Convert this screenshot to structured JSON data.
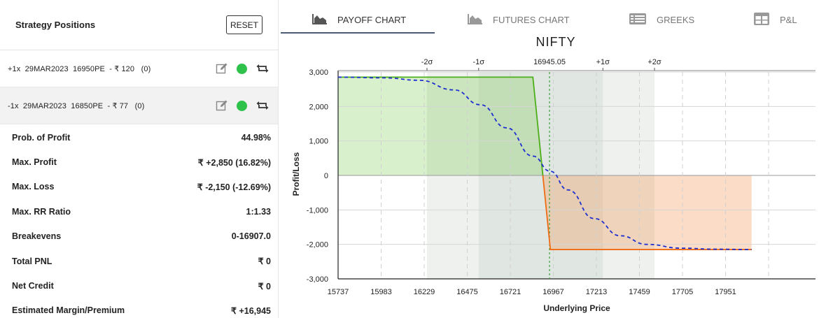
{
  "positions_panel": {
    "title": "Strategy Positions",
    "reset_label": "RESET",
    "positions": [
      {
        "text": "+1x  29MAR2023  16950PE  - ₹ 120   (0)",
        "active": true
      },
      {
        "text": "-1x  29MAR2023  16850PE  - ₹ 77   (0)",
        "active": true
      }
    ],
    "metrics": [
      {
        "label": "Prob. of Profit",
        "value": "44.98%"
      },
      {
        "label": "Max. Profit",
        "value": "₹ +2,850 (16.82%)"
      },
      {
        "label": "Max. Loss",
        "value": "₹ -2,150 (-12.69%)"
      },
      {
        "label": "Max. RR Ratio",
        "value": "1:1.33"
      },
      {
        "label": "Breakevens",
        "value": "0-16907.0"
      },
      {
        "label": "Total PNL",
        "value": "₹ 0"
      },
      {
        "label": "Net Credit",
        "value": "₹ 0"
      },
      {
        "label": "Estimated Margin/Premium",
        "value": "₹ +16,945"
      }
    ]
  },
  "tabs": [
    {
      "label": "PAYOFF CHART",
      "icon": "area-chart-icon",
      "active": true
    },
    {
      "label": "FUTURES CHART",
      "icon": "area-chart-icon",
      "active": false
    },
    {
      "label": "GREEKS",
      "icon": "list-icon",
      "active": false
    },
    {
      "label": "P&L",
      "icon": "table-icon",
      "active": false
    }
  ],
  "chart_data": {
    "type": "line",
    "title": "NIFTY",
    "xlabel": "Underlying Price",
    "ylabel": "Profit/Loss",
    "xlim": [
      15737,
      18100
    ],
    "ylim": [
      -3000,
      3000
    ],
    "x_ticks": [
      15737,
      15983,
      16229,
      16475,
      16721,
      16967,
      17213,
      17459,
      17705,
      17951
    ],
    "y_ticks": [
      3000,
      2000,
      1000,
      0,
      -1000,
      -2000,
      -3000
    ],
    "y_tick_labels": [
      "3,000",
      "2,000",
      "1,000",
      "0",
      "-1,000",
      "-2,000",
      "-3,000"
    ],
    "spot": {
      "value": 16945.05,
      "label": "16945.05"
    },
    "sigma_markers": [
      {
        "label": "-2σ",
        "value": 16245
      },
      {
        "label": "-1σ",
        "value": 16540
      },
      {
        "label": "+1σ",
        "value": 17250
      },
      {
        "label": "+2σ",
        "value": 17545
      }
    ],
    "series": [
      {
        "values_x": [
          15737,
          16850,
          16950,
          18100
        ],
        "values_y": [
          2850,
          2850,
          -2150,
          -2150
        ],
        "color_profit": "#4caf1a",
        "color_loss": "#ef6c14"
      },
      {
        "values_x": [
          15737,
          16000,
          16200,
          16400,
          16550,
          16700,
          16850,
          16950,
          17050,
          17200,
          17350,
          17500,
          17700,
          17900,
          18100
        ],
        "values_y": [
          2850,
          2830,
          2760,
          2480,
          2050,
          1380,
          560,
          120,
          -420,
          -1250,
          -1750,
          -2000,
          -2110,
          -2140,
          -2150
        ],
        "color": "#1f2fcf",
        "dashed": true
      }
    ],
    "breakeven": 16907.0
  }
}
